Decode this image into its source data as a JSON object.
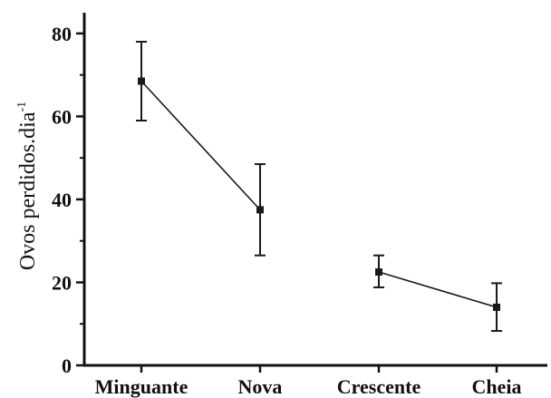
{
  "chart_data": {
    "type": "line",
    "title": "",
    "xlabel": "",
    "ylabel": "Ovos perdidos.dia",
    "ylabel_superscript": "-1",
    "categories": [
      "Minguante",
      "Nova",
      "Crescente",
      "Cheia"
    ],
    "series": [
      {
        "values": [
          68.5,
          37.5,
          22.5,
          14.0
        ],
        "error_low": [
          59.0,
          26.5,
          18.8,
          8.3
        ],
        "error_high": [
          78.0,
          48.5,
          26.5,
          19.8
        ],
        "connected_segments": [
          [
            0,
            1
          ],
          [
            2,
            3
          ]
        ],
        "color": "#1a1a1a",
        "marker": "square"
      }
    ],
    "ylim": [
      0,
      85
    ],
    "yticks": [
      0,
      20,
      40,
      60,
      80
    ],
    "ytick_labels": [
      "0",
      "20",
      "40",
      "60",
      "80"
    ],
    "grid": false,
    "legend": "none"
  }
}
